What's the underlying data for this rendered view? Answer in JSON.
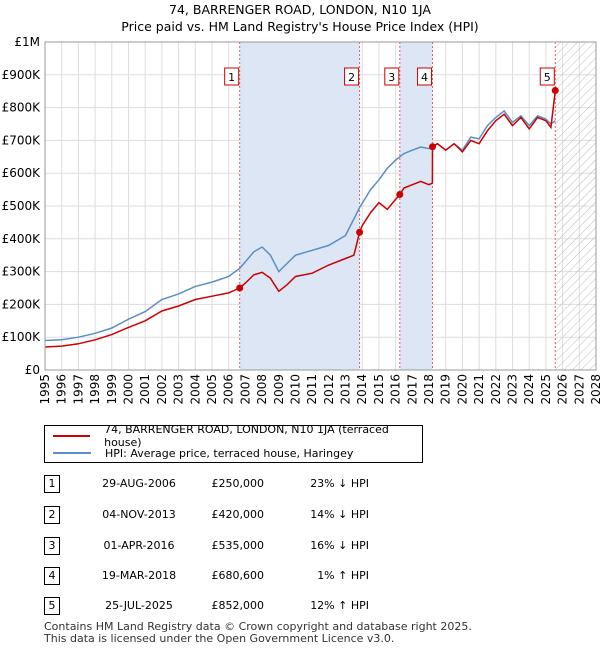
{
  "title_line1": "74, BARRENGER ROAD, LONDON, N10 1JA",
  "title_line2": "Price paid vs. HM Land Registry's House Price Index (HPI)",
  "colors": {
    "property": "#cc0000",
    "hpi": "#5b8ec4",
    "shade": "#dce6f5",
    "grid": "#dddddd",
    "vline": "#e06060"
  },
  "chart_data": {
    "type": "line",
    "title": "Price paid vs. HM Land Registry's House Price Index (HPI)",
    "xlim": [
      1995,
      2028
    ],
    "ylim": [
      0,
      1000000
    ],
    "y_ticks": [
      {
        "value": 0,
        "label": "£0"
      },
      {
        "value": 100000,
        "label": "£100K"
      },
      {
        "value": 200000,
        "label": "£200K"
      },
      {
        "value": 300000,
        "label": "£300K"
      },
      {
        "value": 400000,
        "label": "£400K"
      },
      {
        "value": 500000,
        "label": "£500K"
      },
      {
        "value": 600000,
        "label": "£600K"
      },
      {
        "value": 700000,
        "label": "£700K"
      },
      {
        "value": 800000,
        "label": "£800K"
      },
      {
        "value": 900000,
        "label": "£900K"
      },
      {
        "value": 1000000,
        "label": "£1M"
      }
    ],
    "x_ticks": [
      1995,
      1996,
      1997,
      1998,
      1999,
      2000,
      2001,
      2002,
      2003,
      2004,
      2005,
      2006,
      2007,
      2008,
      2009,
      2010,
      2011,
      2012,
      2013,
      2014,
      2015,
      2016,
      2017,
      2018,
      2019,
      2020,
      2021,
      2022,
      2023,
      2024,
      2025,
      2026,
      2027,
      2028
    ],
    "shaded_ranges": [
      [
        2006.66,
        2013.84
      ],
      [
        2016.25,
        2018.21
      ]
    ],
    "future_hatch_from": 2025.56,
    "series": [
      {
        "name": "74, BARRENGER ROAD, LONDON, N10 1JA (terraced house)",
        "points": [
          [
            1995.0,
            70000
          ],
          [
            1996.0,
            73000
          ],
          [
            1997.0,
            80000
          ],
          [
            1998.0,
            92000
          ],
          [
            1999.0,
            108000
          ],
          [
            2000.0,
            130000
          ],
          [
            2001.0,
            150000
          ],
          [
            2002.0,
            180000
          ],
          [
            2003.0,
            195000
          ],
          [
            2004.0,
            215000
          ],
          [
            2005.0,
            225000
          ],
          [
            2006.0,
            235000
          ],
          [
            2006.66,
            250000
          ],
          [
            2007.0,
            265000
          ],
          [
            2007.5,
            290000
          ],
          [
            2008.0,
            298000
          ],
          [
            2008.5,
            280000
          ],
          [
            2009.0,
            240000
          ],
          [
            2009.5,
            260000
          ],
          [
            2010.0,
            285000
          ],
          [
            2011.0,
            295000
          ],
          [
            2012.0,
            320000
          ],
          [
            2013.0,
            340000
          ],
          [
            2013.5,
            350000
          ],
          [
            2013.84,
            420000
          ],
          [
            2014.0,
            440000
          ],
          [
            2014.5,
            480000
          ],
          [
            2015.0,
            510000
          ],
          [
            2015.5,
            490000
          ],
          [
            2016.0,
            520000
          ],
          [
            2016.25,
            535000
          ],
          [
            2016.5,
            555000
          ],
          [
            2017.0,
            565000
          ],
          [
            2017.5,
            575000
          ],
          [
            2018.0,
            565000
          ],
          [
            2018.2,
            570000
          ],
          [
            2018.21,
            680600
          ],
          [
            2018.5,
            690000
          ],
          [
            2019.0,
            670000
          ],
          [
            2019.5,
            690000
          ],
          [
            2020.0,
            665000
          ],
          [
            2020.5,
            700000
          ],
          [
            2021.0,
            690000
          ],
          [
            2021.5,
            730000
          ],
          [
            2022.0,
            760000
          ],
          [
            2022.5,
            780000
          ],
          [
            2023.0,
            745000
          ],
          [
            2023.5,
            770000
          ],
          [
            2024.0,
            735000
          ],
          [
            2024.5,
            770000
          ],
          [
            2025.0,
            760000
          ],
          [
            2025.3,
            740000
          ],
          [
            2025.56,
            852000
          ]
        ]
      },
      {
        "name": "HPI: Average price, terraced house, Haringey",
        "points": [
          [
            1995.0,
            90000
          ],
          [
            1996.0,
            92000
          ],
          [
            1997.0,
            100000
          ],
          [
            1998.0,
            112000
          ],
          [
            1999.0,
            128000
          ],
          [
            2000.0,
            155000
          ],
          [
            2001.0,
            178000
          ],
          [
            2002.0,
            215000
          ],
          [
            2003.0,
            232000
          ],
          [
            2004.0,
            255000
          ],
          [
            2005.0,
            268000
          ],
          [
            2006.0,
            285000
          ],
          [
            2006.66,
            310000
          ],
          [
            2007.0,
            330000
          ],
          [
            2007.5,
            360000
          ],
          [
            2008.0,
            375000
          ],
          [
            2008.5,
            350000
          ],
          [
            2009.0,
            300000
          ],
          [
            2009.5,
            325000
          ],
          [
            2010.0,
            350000
          ],
          [
            2011.0,
            365000
          ],
          [
            2012.0,
            380000
          ],
          [
            2013.0,
            410000
          ],
          [
            2013.84,
            495000
          ],
          [
            2014.5,
            550000
          ],
          [
            2015.0,
            580000
          ],
          [
            2015.5,
            615000
          ],
          [
            2016.0,
            640000
          ],
          [
            2016.25,
            650000
          ],
          [
            2016.5,
            660000
          ],
          [
            2017.0,
            670000
          ],
          [
            2017.5,
            680000
          ],
          [
            2018.0,
            675000
          ],
          [
            2018.21,
            680000
          ],
          [
            2018.5,
            690000
          ],
          [
            2019.0,
            670000
          ],
          [
            2019.5,
            690000
          ],
          [
            2020.0,
            670000
          ],
          [
            2020.5,
            710000
          ],
          [
            2021.0,
            705000
          ],
          [
            2021.5,
            745000
          ],
          [
            2022.0,
            770000
          ],
          [
            2022.5,
            790000
          ],
          [
            2023.0,
            755000
          ],
          [
            2023.5,
            775000
          ],
          [
            2024.0,
            745000
          ],
          [
            2024.5,
            775000
          ],
          [
            2025.0,
            765000
          ],
          [
            2025.3,
            750000
          ],
          [
            2025.56,
            760000
          ]
        ]
      }
    ],
    "sales": [
      {
        "n": "1",
        "x": 2006.66,
        "y": 250000
      },
      {
        "n": "2",
        "x": 2013.84,
        "y": 420000
      },
      {
        "n": "3",
        "x": 2016.25,
        "y": 535000
      },
      {
        "n": "4",
        "x": 2018.21,
        "y": 680600
      },
      {
        "n": "5",
        "x": 2025.56,
        "y": 852000
      }
    ]
  },
  "legend": {
    "property": "74, BARRENGER ROAD, LONDON, N10 1JA (terraced house)",
    "hpi": "HPI: Average price, terraced house, Haringey"
  },
  "transactions": [
    {
      "n": "1",
      "date": "29-AUG-2006",
      "price": "£250,000",
      "hpi": "23% ↓ HPI"
    },
    {
      "n": "2",
      "date": "04-NOV-2013",
      "price": "£420,000",
      "hpi": "14% ↓ HPI"
    },
    {
      "n": "3",
      "date": "01-APR-2016",
      "price": "£535,000",
      "hpi": "16% ↓ HPI"
    },
    {
      "n": "4",
      "date": "19-MAR-2018",
      "price": "£680,600",
      "hpi": "1% ↑ HPI"
    },
    {
      "n": "5",
      "date": "25-JUL-2025",
      "price": "£852,000",
      "hpi": "12% ↑ HPI"
    }
  ],
  "footer_line1": "Contains HM Land Registry data © Crown copyright and database right 2025.",
  "footer_line2": "This data is licensed under the Open Government Licence v3.0."
}
